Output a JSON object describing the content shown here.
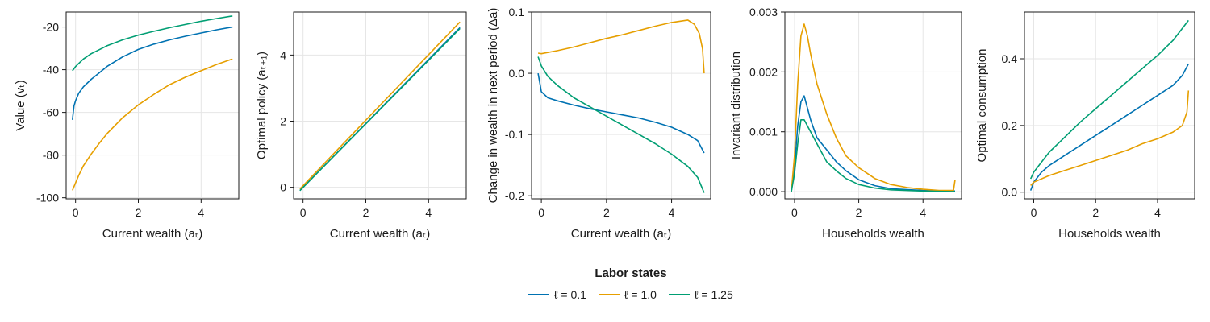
{
  "chart_data": [
    {
      "type": "line",
      "xlabel": "Current wealth (aₜ)",
      "ylabel": "Value (vₜ)",
      "xlim": [
        -0.3,
        5.2
      ],
      "ylim": [
        -100.5,
        -13
      ],
      "xticks": [
        0,
        2,
        4
      ],
      "yticks": [
        -100,
        -80,
        -60,
        -40,
        -20
      ],
      "yticklabels": [
        "-100",
        "-80",
        "-60",
        "-40",
        "-20"
      ],
      "series": [
        {
          "name": "ℓ = 0.1",
          "color": "#0072b2",
          "x": [
            -0.1,
            -0.05,
            0,
            0.1,
            0.25,
            0.5,
            0.75,
            1,
            1.5,
            2,
            2.5,
            3,
            3.5,
            4,
            4.5,
            5
          ],
          "y": [
            -63.5,
            -57,
            -54.5,
            -51,
            -48,
            -44.5,
            -41.5,
            -38.5,
            -34,
            -30.5,
            -28,
            -26,
            -24.3,
            -22.8,
            -21.3,
            -20
          ]
        },
        {
          "name": "ℓ = 1.0",
          "color": "#e69f00",
          "x": [
            -0.1,
            0,
            0.1,
            0.25,
            0.5,
            0.75,
            1,
            1.5,
            2,
            2.5,
            3,
            3.5,
            4,
            4.5,
            5
          ],
          "y": [
            -96.5,
            -93,
            -89.5,
            -85,
            -79.5,
            -74.5,
            -70,
            -62.5,
            -56.5,
            -51.5,
            -47,
            -43.5,
            -40.5,
            -37.5,
            -35
          ]
        },
        {
          "name": "ℓ = 1.25",
          "color": "#009e73",
          "x": [
            -0.1,
            0,
            0.25,
            0.5,
            1,
            1.5,
            2,
            2.5,
            3,
            3.5,
            4,
            4.5,
            5
          ],
          "y": [
            -40.5,
            -38.5,
            -35,
            -32.5,
            -28.8,
            -26,
            -23.8,
            -22,
            -20.3,
            -18.8,
            -17.3,
            -16,
            -14.8
          ]
        }
      ]
    },
    {
      "type": "line",
      "xlabel": "Current wealth (aₜ)",
      "ylabel": "Optimal policy (aₜ₊₁)",
      "xlim": [
        -0.3,
        5.2
      ],
      "ylim": [
        -0.35,
        5.3
      ],
      "xticks": [
        0,
        2,
        4
      ],
      "yticks": [
        0,
        2,
        4
      ],
      "yticklabels": [
        "0",
        "2",
        "4"
      ],
      "series": [
        {
          "name": "ℓ = 0.1",
          "color": "#0072b2",
          "x": [
            -0.1,
            5
          ],
          "y": [
            -0.1,
            4.83
          ]
        },
        {
          "name": "ℓ = 1.0",
          "color": "#e69f00",
          "x": [
            -0.1,
            5
          ],
          "y": [
            -0.05,
            5.0
          ]
        },
        {
          "name": "ℓ = 1.25",
          "color": "#009e73",
          "x": [
            -0.1,
            5
          ],
          "y": [
            -0.1,
            4.8
          ]
        }
      ]
    },
    {
      "type": "line",
      "xlabel": "Current wealth (aₜ)",
      "ylabel": "Change in wealth in next period (Δa)",
      "xlim": [
        -0.3,
        5.2
      ],
      "ylim": [
        -0.205,
        0.1
      ],
      "xticks": [
        0,
        2,
        4
      ],
      "yticks": [
        -0.2,
        -0.1,
        0.0,
        0.1
      ],
      "yticklabels": [
        "-0.2",
        "-0.1",
        "0.0",
        "0.1"
      ],
      "series": [
        {
          "name": "ℓ = 0.1",
          "color": "#0072b2",
          "x": [
            -0.1,
            0,
            0.2,
            0.5,
            1,
            1.5,
            2,
            2.5,
            3,
            3.5,
            4,
            4.5,
            4.8,
            5
          ],
          "y": [
            0.0,
            -0.03,
            -0.04,
            -0.045,
            -0.052,
            -0.058,
            -0.063,
            -0.068,
            -0.073,
            -0.08,
            -0.088,
            -0.1,
            -0.11,
            -0.13
          ]
        },
        {
          "name": "ℓ = 1.0",
          "color": "#e69f00",
          "x": [
            -0.1,
            0,
            0.5,
            1,
            1.5,
            2,
            2.5,
            3,
            3.5,
            4,
            4.5,
            4.7,
            4.85,
            4.95,
            5
          ],
          "y": [
            0.033,
            0.032,
            0.037,
            0.043,
            0.05,
            0.057,
            0.063,
            0.07,
            0.077,
            0.083,
            0.087,
            0.08,
            0.065,
            0.04,
            0.0
          ]
        },
        {
          "name": "ℓ = 1.25",
          "color": "#009e73",
          "x": [
            -0.1,
            0,
            0.2,
            0.5,
            1,
            1.5,
            2,
            2.5,
            3,
            3.5,
            4,
            4.5,
            4.8,
            5
          ],
          "y": [
            0.027,
            0.012,
            -0.005,
            -0.02,
            -0.04,
            -0.055,
            -0.07,
            -0.085,
            -0.1,
            -0.115,
            -0.132,
            -0.152,
            -0.17,
            -0.195
          ]
        }
      ]
    },
    {
      "type": "line",
      "xlabel": "Households wealth",
      "ylabel": "Invariant distribution",
      "xlim": [
        -0.3,
        5.2
      ],
      "ylim": [
        -0.00012,
        0.003
      ],
      "xticks": [
        0,
        2,
        4
      ],
      "yticks": [
        0,
        0.001,
        0.002,
        0.003
      ],
      "yticklabels": [
        "0.000",
        "0.001",
        "0.002",
        "0.003"
      ],
      "series": [
        {
          "name": "ℓ = 0.1",
          "color": "#0072b2",
          "x": [
            -0.1,
            0,
            0.1,
            0.2,
            0.3,
            0.4,
            0.5,
            0.7,
            1,
            1.3,
            1.6,
            2,
            2.5,
            3,
            4,
            5
          ],
          "y": [
            0.0,
            0.0004,
            0.0011,
            0.0015,
            0.0016,
            0.0014,
            0.0012,
            0.0009,
            0.0007,
            0.0005,
            0.00035,
            0.0002,
            0.0001,
            5e-05,
            2e-05,
            1e-05
          ]
        },
        {
          "name": "ℓ = 1.0",
          "color": "#e69f00",
          "x": [
            -0.1,
            0,
            0.1,
            0.2,
            0.3,
            0.4,
            0.5,
            0.7,
            1,
            1.3,
            1.6,
            2,
            2.5,
            3,
            3.5,
            4,
            4.5,
            4.95,
            5
          ],
          "y": [
            0.0,
            0.0006,
            0.0018,
            0.0026,
            0.0028,
            0.0026,
            0.0023,
            0.0018,
            0.0013,
            0.0009,
            0.0006,
            0.0004,
            0.00022,
            0.00012,
            7e-05,
            4e-05,
            2e-05,
            2e-05,
            0.0002
          ]
        },
        {
          "name": "ℓ = 1.25",
          "color": "#009e73",
          "x": [
            -0.1,
            0,
            0.1,
            0.2,
            0.3,
            0.4,
            0.5,
            0.7,
            1,
            1.3,
            1.6,
            2,
            2.5,
            3,
            4,
            5
          ],
          "y": [
            0.0,
            0.0003,
            0.0008,
            0.0012,
            0.0012,
            0.0011,
            0.001,
            0.0008,
            0.0005,
            0.00035,
            0.00022,
            0.00012,
            6e-05,
            3e-05,
            1e-05,
            0.0
          ]
        }
      ]
    },
    {
      "type": "line",
      "xlabel": "Households wealth",
      "ylabel": "Optimal consumption",
      "xlim": [
        -0.3,
        5.2
      ],
      "ylim": [
        -0.02,
        0.54
      ],
      "xticks": [
        0,
        2,
        4
      ],
      "yticks": [
        0.0,
        0.2,
        0.4
      ],
      "yticklabels": [
        "0.0",
        "0.2",
        "0.4"
      ],
      "series": [
        {
          "name": "ℓ = 0.1",
          "color": "#0072b2",
          "x": [
            -0.1,
            0,
            0.25,
            0.5,
            1,
            1.5,
            2,
            2.5,
            3,
            3.5,
            4,
            4.5,
            4.8,
            5
          ],
          "y": [
            0.005,
            0.03,
            0.06,
            0.08,
            0.11,
            0.14,
            0.17,
            0.2,
            0.23,
            0.26,
            0.29,
            0.32,
            0.35,
            0.385
          ]
        },
        {
          "name": "ℓ = 1.0",
          "color": "#e69f00",
          "x": [
            -0.1,
            0,
            0.5,
            1,
            1.5,
            2,
            2.5,
            3,
            3.5,
            4,
            4.5,
            4.8,
            4.95,
            5
          ],
          "y": [
            0.02,
            0.03,
            0.05,
            0.065,
            0.08,
            0.095,
            0.11,
            0.125,
            0.145,
            0.16,
            0.18,
            0.2,
            0.24,
            0.305
          ]
        },
        {
          "name": "ℓ = 1.25",
          "color": "#009e73",
          "x": [
            -0.1,
            0,
            0.25,
            0.5,
            1,
            1.5,
            2,
            2.5,
            3,
            3.5,
            4,
            4.5,
            5
          ],
          "y": [
            0.04,
            0.06,
            0.09,
            0.12,
            0.165,
            0.21,
            0.25,
            0.29,
            0.33,
            0.37,
            0.41,
            0.455,
            0.515
          ]
        }
      ]
    }
  ],
  "legend": {
    "title": "Labor states",
    "entries": [
      {
        "label": "ℓ = 0.1",
        "color": "#0072b2"
      },
      {
        "label": "ℓ = 1.0",
        "color": "#e69f00"
      },
      {
        "label": "ℓ = 1.25",
        "color": "#009e73"
      }
    ]
  }
}
